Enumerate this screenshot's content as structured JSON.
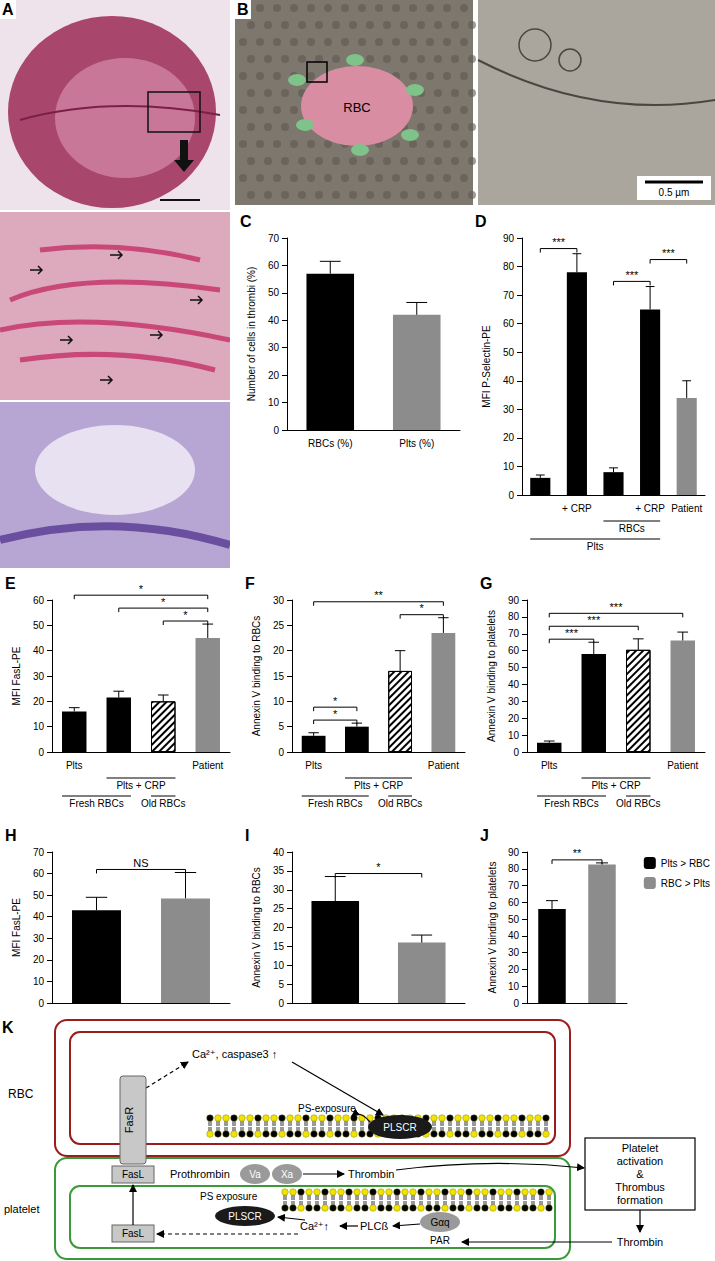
{
  "panels": {
    "A": {
      "label": "A"
    },
    "B": {
      "label": "B",
      "cell": "RBC",
      "scale_bar": "0.5 µm"
    }
  },
  "chart_data": [
    {
      "label": "C",
      "type": "bar",
      "ylabel": "Number of cells in thrombi (%)",
      "categories": [
        "RBCs (%)",
        "Plts (%)"
      ],
      "values": [
        57,
        42
      ],
      "errors": [
        4.5,
        4.5
      ],
      "colors": [
        "#000000",
        "#8c8c8c"
      ],
      "ylim": [
        0,
        70
      ],
      "yticks": [
        0,
        10,
        20,
        30,
        40,
        50,
        60,
        70
      ],
      "grid": false
    },
    {
      "label": "D",
      "type": "bar",
      "ylabel": "MFI P-Selectin-PE",
      "categories": [
        null,
        "+ CRP",
        null,
        "+ CRP",
        "Patient"
      ],
      "values": [
        6,
        78,
        8,
        65,
        34
      ],
      "errors": [
        1,
        6.5,
        1.5,
        8,
        6
      ],
      "colors": [
        "#000000",
        "#000000",
        "#000000",
        "#000000",
        "#8c8c8c"
      ],
      "groups": [
        [
          {
            "label": "RBCs",
            "from": 2,
            "to": 3
          }
        ],
        [
          {
            "label": "Plts",
            "from": 0,
            "to": 3
          }
        ]
      ],
      "significance": [
        {
          "label": "***",
          "from": 0,
          "to": 1
        },
        {
          "label": "***",
          "from": 2,
          "to": 3
        },
        {
          "label": "***",
          "from": 3,
          "to": 4
        }
      ],
      "ylim": [
        0,
        90
      ],
      "yticks": [
        0,
        10,
        20,
        30,
        40,
        50,
        60,
        70,
        80,
        90
      ],
      "grid": false
    },
    {
      "label": "E",
      "type": "bar",
      "ylabel": "MFI FasL-PE",
      "categories": [
        "Plts",
        null,
        null,
        "Patient"
      ],
      "values": [
        16,
        21.5,
        20,
        45
      ],
      "errors": [
        1.5,
        2.5,
        2.5,
        5.5
      ],
      "colors": [
        "#000000",
        "#000000",
        "#000000",
        "#8c8c8c"
      ],
      "groups": [
        [
          {
            "label": "Plts + CRP",
            "from": 1,
            "to": 2
          }
        ],
        [
          {
            "label": "Fresh RBCs",
            "from": 0,
            "to": 1
          },
          {
            "label": "Old RBCs",
            "from": 2,
            "to": 2
          }
        ]
      ],
      "significance": [
        {
          "label": "*",
          "from": 2,
          "to": 3
        },
        {
          "label": "*",
          "from": 1,
          "to": 3
        },
        {
          "label": "*",
          "from": 0,
          "to": 3
        }
      ],
      "ylim": [
        0,
        60
      ],
      "yticks": [
        0,
        10,
        20,
        30,
        40,
        50,
        60
      ],
      "grid": false
    },
    {
      "label": "F",
      "type": "bar",
      "ylabel": "Annexin V binding to RBCs",
      "categories": [
        "Plts",
        null,
        null,
        "Patient"
      ],
      "values": [
        3.2,
        5,
        16,
        23.5
      ],
      "errors": [
        0.6,
        0.7,
        4,
        3
      ],
      "colors": [
        "#000000",
        "#000000",
        "#000000",
        "#8c8c8c"
      ],
      "groups": [
        [
          {
            "label": "Plts + CRP",
            "from": 1,
            "to": 2
          }
        ],
        [
          {
            "label": "Fresh RBCs",
            "from": 0,
            "to": 1
          },
          {
            "label": "Old RBCs",
            "from": 2,
            "to": 2
          }
        ]
      ],
      "significance": [
        {
          "label": "*",
          "from": 0,
          "to": 1
        },
        {
          "label": "*",
          "from": 0,
          "to": 1
        },
        {
          "label": "*",
          "from": 2,
          "to": 3
        },
        {
          "label": "**",
          "from": 0,
          "to": 3
        }
      ],
      "ylim": [
        0,
        30
      ],
      "yticks": [
        0,
        5,
        10,
        15,
        20,
        25,
        30
      ],
      "grid": false
    },
    {
      "label": "G",
      "type": "bar",
      "ylabel": "Annexin V binding to platelets",
      "categories": [
        "Plts",
        null,
        null,
        "Patient"
      ],
      "values": [
        5.5,
        58,
        60.5,
        66
      ],
      "errors": [
        1,
        7,
        6.5,
        5
      ],
      "colors": [
        "#000000",
        "#000000",
        "#000000",
        "#8c8c8c"
      ],
      "groups": [
        [
          {
            "label": "Plts + CRP",
            "from": 1,
            "to": 2
          }
        ],
        [
          {
            "label": "Fresh RBCs",
            "from": 0,
            "to": 1
          },
          {
            "label": "Old RBCs",
            "from": 2,
            "to": 2
          }
        ]
      ],
      "significance": [
        {
          "label": "***",
          "from": 0,
          "to": 1
        },
        {
          "label": "***",
          "from": 0,
          "to": 2
        },
        {
          "label": "***",
          "from": 0,
          "to": 3
        }
      ],
      "ylim": [
        0,
        90
      ],
      "yticks": [
        0,
        10,
        20,
        30,
        40,
        50,
        60,
        70,
        80,
        90
      ],
      "grid": false
    },
    {
      "label": "H",
      "type": "bar",
      "ylabel": "MFI FasL-PE",
      "categories": [
        null,
        null
      ],
      "values": [
        43,
        48.5
      ],
      "errors": [
        6,
        12
      ],
      "colors": [
        "#000000",
        "#8c8c8c"
      ],
      "significance": [
        {
          "label": "NS",
          "from": 0,
          "to": 1
        }
      ],
      "ylim": [
        0,
        70
      ],
      "yticks": [
        0,
        10,
        20,
        30,
        40,
        50,
        60,
        70
      ],
      "grid": false
    },
    {
      "label": "I",
      "type": "bar",
      "ylabel": "Annexin V binding to RBCs",
      "categories": [
        null,
        null
      ],
      "values": [
        27,
        16
      ],
      "errors": [
        6.5,
        2
      ],
      "colors": [
        "#000000",
        "#8c8c8c"
      ],
      "significance": [
        {
          "label": "*",
          "from": 0,
          "to": 1
        }
      ],
      "ylim": [
        0,
        40
      ],
      "yticks": [
        0,
        5,
        10,
        15,
        20,
        25,
        30,
        35,
        40
      ],
      "grid": false
    },
    {
      "label": "J",
      "type": "bar",
      "ylabel": "Annexin V binding to platelets",
      "series": [
        {
          "name": "Plts > RBC",
          "color": "#000000",
          "values": [
            56
          ],
          "errors": [
            5
          ]
        },
        {
          "name": "RBC > Plts",
          "color": "#8c8c8c",
          "values": [
            82.5
          ],
          "errors": [
            1
          ]
        }
      ],
      "significance": [
        {
          "label": "**",
          "from": 0,
          "to": 1
        }
      ],
      "legend": "right",
      "ylim": [
        0,
        90
      ],
      "yticks": [
        0,
        10,
        20,
        30,
        40,
        50,
        60,
        70,
        80,
        90
      ],
      "grid": false
    }
  ],
  "diagram": {
    "label": "K",
    "cells": {
      "rbc": "RBC",
      "platelet": "platelet"
    },
    "rbc": {
      "signal": "Ca²⁺, caspase3 ↑",
      "receptor": "FasR",
      "exposure": "PS-exposure",
      "scramblase": "PLSCR"
    },
    "platelet": {
      "ligand_surface": "FasL",
      "ligand_internal": "FasL",
      "exposure": "PS exposure",
      "scramblase": "PLSCR",
      "calcium": "Ca²⁺↑",
      "enzyme": "PLCß",
      "g_protein": "Gαq",
      "receptor": "PAR"
    },
    "coagulation": {
      "substrate": "Prothrombin",
      "factors": [
        "Va",
        "Xa"
      ],
      "product": "Thrombin"
    },
    "outcome": [
      "Platelet",
      "activation",
      "&",
      "Thrombus",
      "formation"
    ],
    "feedback": "Thrombin"
  }
}
